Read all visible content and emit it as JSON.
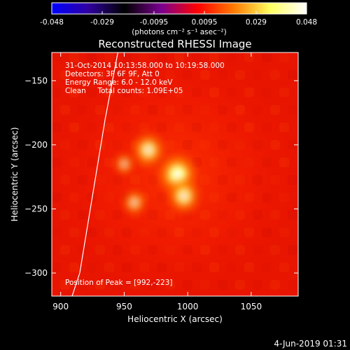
{
  "chart_data": {
    "type": "heatmap",
    "title": "Reconstructed RHESSI Image",
    "colorbar": {
      "ticks": [
        "-0.048",
        "-0.029",
        "-0.0095",
        "0.0095",
        "0.029",
        "0.048"
      ],
      "tick_values": [
        -0.048,
        -0.029,
        -0.0095,
        0.0095,
        0.029,
        0.048
      ],
      "range": [
        -0.048,
        0.048
      ],
      "label": "(photons cm⁻² s⁻¹ asec⁻²)",
      "colormap": [
        "#0000ff",
        "#3000a0",
        "#000000",
        "#7a0090",
        "#ff0000",
        "#ff7a00",
        "#ffff60",
        "#ffffff"
      ]
    },
    "xlabel": "Heliocentric X (arcsec)",
    "ylabel": "Heliocentric Y (arcsec)",
    "xlim": [
      893,
      1087
    ],
    "ylim": [
      -318,
      -128
    ],
    "x_ticks": [
      900,
      950,
      1000,
      1050
    ],
    "x_tick_labels": [
      "900",
      "950",
      "1000",
      "1050"
    ],
    "y_ticks": [
      -150,
      -200,
      -250,
      -300
    ],
    "y_tick_labels": [
      "−150",
      "−200",
      "−250",
      "−300"
    ],
    "annotations": [
      "31-Oct-2014 10:13:58.000 to 10:19:58.000",
      "Detectors: 3F 6F 9F, Att 0",
      "Energy Range: 6.0 - 12.0 keV",
      "Clean     Total counts: 1.09E+05"
    ],
    "peak_label": "Position of Peak = [992,-223]",
    "peak": [
      992,
      -223
    ],
    "sources": [
      {
        "x": 992,
        "y": -223,
        "intensity": 0.048
      },
      {
        "x": 997,
        "y": -240,
        "intensity": 0.036
      },
      {
        "x": 969,
        "y": -204,
        "intensity": 0.036
      },
      {
        "x": 958,
        "y": -245,
        "intensity": 0.02
      },
      {
        "x": 950,
        "y": -215,
        "intensity": 0.014
      }
    ],
    "limb": [
      [
        945,
        -128
      ],
      [
        935,
        -180
      ],
      [
        925,
        -240
      ],
      [
        915,
        -300
      ],
      [
        909,
        -318
      ]
    ],
    "colors": {
      "background": "#000000",
      "limb": "#ffffff",
      "text": "#ffffff"
    }
  },
  "footer": {
    "date": "4-Jun-2019 01:31"
  }
}
